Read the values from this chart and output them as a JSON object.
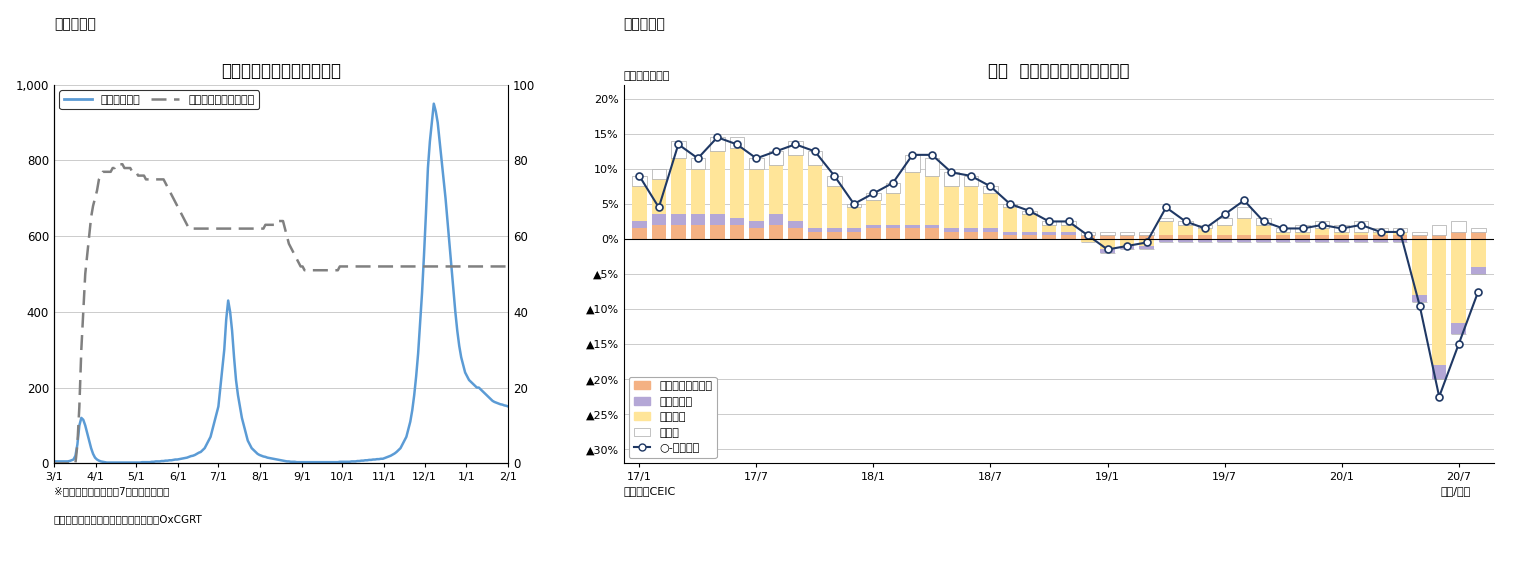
{
  "fig3_title": "タイの新規感染者数の推移",
  "fig3_label": "（図表３）",
  "fig3_legend1": "新規感染者数",
  "fig3_legend2": "厳格度指数（右目盛）",
  "fig3_footnote1": "※新規感染者数は後方7日移動平均の値",
  "fig3_footnote2": "（資料）ジョンズ・ホプキンズ大学、OxCGRT",
  "fig3_xticks": [
    "3/1",
    "4/1",
    "5/1",
    "6/1",
    "7/1",
    "8/1",
    "9/1",
    "10/1",
    "11/1",
    "12/1",
    "1/1",
    "2/1"
  ],
  "fig3_color_blue": "#5B9BD5",
  "fig3_color_gray": "#808080",
  "fig4_title": "タイ  輸出の伸び率（品目別）",
  "fig4_label": "（図表４）",
  "fig4_ylabel": "（前年同月比）",
  "fig4_footnote1": "（資料）CEIC",
  "fig4_footnote2": "（年/月）",
  "fig4_color_agri": "#F4B183",
  "fig4_color_mining": "#B4A7D6",
  "fig4_color_industry": "#FFE599",
  "fig4_color_other": "#FFFFFF",
  "fig4_color_line": "#1F3864",
  "fig4_legend": [
    "農産物・同加工品",
    "鉱物・燃料",
    "工業製品",
    "その他",
    "○-輸出全体"
  ],
  "fig4_xtick_labels": [
    "17/1",
    "17/7",
    "18/1",
    "18/7",
    "19/1",
    "19/7",
    "20/1",
    "20/7"
  ],
  "agri": [
    1.5,
    2.0,
    2.0,
    2.0,
    2.0,
    2.0,
    1.5,
    2.0,
    1.5,
    1.0,
    1.0,
    1.0,
    1.5,
    1.5,
    1.5,
    1.5,
    1.0,
    1.0,
    1.0,
    0.5,
    0.5,
    0.5,
    0.5,
    0.5,
    0.5,
    0.5,
    0.5,
    0.5,
    0.5,
    0.5,
    0.5,
    0.5,
    0.5,
    0.5,
    0.5,
    0.5,
    0.5,
    0.5,
    0.5,
    0.5,
    0.5,
    0.5,
    1.0,
    1.0
  ],
  "mining": [
    1.0,
    1.5,
    1.5,
    1.5,
    1.5,
    1.0,
    1.0,
    1.5,
    1.0,
    0.5,
    0.5,
    0.5,
    0.5,
    0.5,
    0.5,
    0.5,
    0.5,
    0.5,
    0.5,
    0.5,
    0.5,
    0.5,
    0.5,
    0.0,
    -0.5,
    -0.5,
    -0.5,
    -0.5,
    -0.5,
    -0.5,
    -0.5,
    -0.5,
    -0.5,
    -0.5,
    -0.5,
    -0.5,
    -0.5,
    -0.5,
    -0.5,
    -0.5,
    -1.0,
    -2.0,
    -1.5,
    -1.0
  ],
  "industry": [
    5.0,
    5.0,
    8.0,
    6.5,
    9.0,
    10.0,
    7.5,
    7.0,
    9.5,
    9.0,
    6.0,
    3.0,
    3.5,
    4.5,
    7.5,
    7.0,
    6.0,
    6.0,
    5.0,
    3.5,
    2.5,
    1.0,
    1.0,
    -0.5,
    -1.5,
    -1.0,
    -1.0,
    2.0,
    1.5,
    1.0,
    1.5,
    2.5,
    1.5,
    0.5,
    0.5,
    1.0,
    0.5,
    0.5,
    0.5,
    0.5,
    -8.0,
    -18.0,
    -12.0,
    -4.0
  ],
  "other": [
    1.5,
    1.5,
    2.5,
    1.5,
    2.0,
    1.5,
    1.5,
    2.0,
    2.0,
    2.0,
    1.5,
    0.5,
    1.0,
    1.5,
    2.5,
    2.5,
    2.0,
    1.5,
    1.0,
    0.5,
    0.5,
    0.5,
    0.5,
    0.5,
    0.5,
    0.5,
    0.5,
    0.5,
    0.5,
    0.5,
    1.0,
    1.5,
    1.0,
    0.5,
    1.0,
    1.0,
    1.0,
    1.5,
    0.5,
    0.5,
    0.5,
    1.5,
    1.5,
    0.5
  ],
  "total": [
    9.0,
    4.5,
    13.5,
    11.5,
    14.5,
    13.5,
    11.5,
    12.5,
    13.5,
    12.5,
    9.0,
    5.0,
    6.5,
    8.0,
    12.0,
    12.0,
    9.5,
    9.0,
    7.5,
    5.0,
    4.0,
    2.5,
    2.5,
    0.5,
    -1.5,
    -1.0,
    -0.5,
    4.5,
    2.5,
    1.5,
    3.5,
    5.5,
    2.5,
    1.5,
    1.5,
    2.0,
    1.5,
    2.0,
    1.0,
    1.0,
    -9.5,
    -22.5,
    -15.0,
    -7.5
  ],
  "infections": [
    5,
    5,
    5,
    5,
    5,
    5,
    5,
    5,
    6,
    8,
    10,
    20,
    50,
    100,
    120,
    115,
    100,
    80,
    60,
    40,
    25,
    15,
    10,
    7,
    5,
    4,
    3,
    2,
    2,
    2,
    2,
    2,
    2,
    2,
    2,
    2,
    2,
    2,
    2,
    2,
    2,
    2,
    2,
    2,
    2,
    3,
    3,
    3,
    3,
    3,
    4,
    4,
    5,
    5,
    5,
    6,
    6,
    7,
    7,
    8,
    8,
    9,
    10,
    10,
    11,
    12,
    13,
    14,
    15,
    17,
    19,
    20,
    22,
    25,
    28,
    30,
    35,
    40,
    50,
    60,
    70,
    90,
    110,
    130,
    150,
    200,
    250,
    300,
    380,
    430,
    400,
    350,
    280,
    220,
    180,
    150,
    120,
    100,
    80,
    60,
    50,
    40,
    35,
    30,
    25,
    22,
    20,
    18,
    17,
    15,
    14,
    13,
    12,
    11,
    10,
    9,
    8,
    7,
    6,
    5,
    5,
    4,
    4,
    4,
    3,
    3,
    3,
    3,
    3,
    3,
    3,
    3,
    3,
    3,
    3,
    3,
    3,
    3,
    3,
    3,
    3,
    3,
    3,
    3,
    3,
    3,
    4,
    4,
    4,
    4,
    4,
    4,
    5,
    5,
    5,
    6,
    6,
    7,
    7,
    8,
    8,
    9,
    9,
    10,
    10,
    11,
    11,
    12,
    12,
    14,
    16,
    18,
    20,
    23,
    26,
    30,
    35,
    40,
    50,
    60,
    70,
    90,
    110,
    140,
    180,
    230,
    290,
    370,
    450,
    550,
    660,
    780,
    850,
    900,
    950,
    930,
    900,
    850,
    800,
    750,
    700,
    640,
    580,
    520,
    460,
    400,
    350,
    310,
    280,
    260,
    240,
    230,
    220,
    215,
    210,
    205,
    200,
    200,
    195,
    190,
    185,
    180,
    175,
    170,
    165,
    162,
    160,
    158,
    156,
    155,
    153,
    152,
    150
  ],
  "stringency": [
    0,
    0,
    0,
    0,
    0,
    0,
    0,
    0,
    0,
    0,
    0,
    0,
    5,
    15,
    30,
    40,
    50,
    55,
    60,
    65,
    68,
    70,
    72,
    75,
    76,
    77,
    77,
    77,
    77,
    77,
    78,
    78,
    79,
    79,
    79,
    79,
    78,
    78,
    78,
    78,
    77,
    77,
    77,
    76,
    76,
    76,
    76,
    75,
    75,
    75,
    75,
    75,
    75,
    75,
    75,
    75,
    75,
    74,
    73,
    72,
    71,
    70,
    69,
    68,
    67,
    66,
    65,
    64,
    63,
    62,
    62,
    62,
    62,
    62,
    62,
    62,
    62,
    62,
    62,
    62,
    62,
    62,
    62,
    62,
    62,
    62,
    62,
    62,
    62,
    62,
    62,
    62,
    62,
    62,
    62,
    62,
    62,
    62,
    62,
    62,
    62,
    62,
    62,
    62,
    62,
    62,
    62,
    62,
    63,
    63,
    63,
    63,
    63,
    63,
    64,
    64,
    64,
    64,
    62,
    60,
    58,
    57,
    56,
    55,
    54,
    53,
    52,
    52,
    51,
    51,
    51,
    51,
    51,
    51,
    51,
    51,
    51,
    51,
    51,
    51,
    51,
    51,
    51,
    51,
    51,
    51,
    52,
    52,
    52,
    52,
    52,
    52,
    52,
    52,
    52,
    52,
    52,
    52,
    52,
    52,
    52,
    52,
    52,
    52,
    52,
    52,
    52,
    52,
    52,
    52,
    52,
    52,
    52,
    52,
    52,
    52,
    52,
    52,
    52,
    52,
    52,
    52,
    52,
    52,
    52,
    52,
    52,
    52,
    52,
    52,
    52,
    52,
    52,
    52,
    52,
    52,
    52,
    52,
    52,
    52,
    52,
    52,
    52,
    52,
    52,
    52,
    52,
    52,
    52,
    52,
    52,
    52,
    52,
    52,
    52,
    52,
    52,
    52,
    52,
    52,
    52,
    52,
    52,
    52,
    52,
    52,
    52,
    52,
    52,
    52,
    52,
    52,
    52
  ]
}
